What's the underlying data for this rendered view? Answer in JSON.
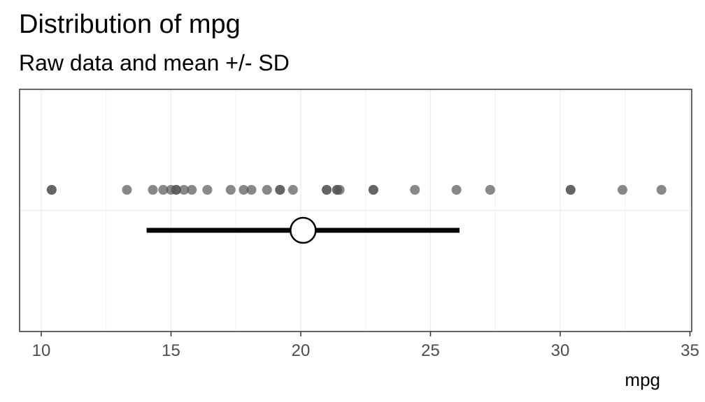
{
  "chart_data": {
    "type": "scatter",
    "title": "Distribution of mpg",
    "subtitle": "Raw data and mean +/- SD",
    "xlabel": "mpg",
    "ylabel": "",
    "xlim": [
      9.2,
      35
    ],
    "x_ticks": [
      10,
      15,
      20,
      25,
      30,
      35
    ],
    "x_tick_labels": [
      "10",
      "15",
      "20",
      "25",
      "30",
      "35"
    ],
    "grid": true,
    "series": [
      {
        "kind": "raw_points",
        "x": [
          21.0,
          21.0,
          22.8,
          21.4,
          18.7,
          18.1,
          14.3,
          24.4,
          22.8,
          19.2,
          17.8,
          16.4,
          17.3,
          15.2,
          10.4,
          10.4,
          14.7,
          32.4,
          30.4,
          33.9,
          21.5,
          15.5,
          15.2,
          13.3,
          19.2,
          27.3,
          26.0,
          30.4,
          15.8,
          19.7,
          15.0,
          21.4
        ]
      },
      {
        "kind": "mean_sd",
        "mean": 20.09,
        "sd": 6.03,
        "low": 14.06,
        "high": 26.12
      }
    ],
    "colors": {
      "points": "#555555",
      "mean_line": "#000000",
      "mean_fill": "#ffffff",
      "grid": "#ebebeb",
      "panel_border": "#333333",
      "text": "#000000",
      "tick_text": "#4d4d4d"
    }
  }
}
